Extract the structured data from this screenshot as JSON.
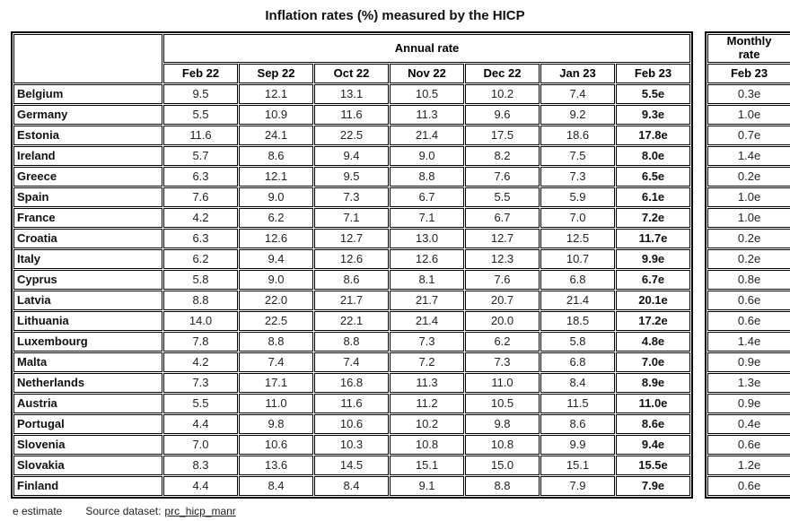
{
  "title": "Inflation rates (%) measured by the HICP",
  "annual": {
    "header": "Annual rate",
    "months": [
      "Feb 22",
      "Sep 22",
      "Oct 22",
      "Nov 22",
      "Dec 22",
      "Jan 23",
      "Feb 23"
    ]
  },
  "monthly": {
    "header": "Monthly rate",
    "month": "Feb 23"
  },
  "rows": [
    {
      "country": "Belgium",
      "annual": [
        "9.5",
        "12.1",
        "13.1",
        "10.5",
        "10.2",
        "7.4",
        "5.5e"
      ],
      "monthly": "0.3e"
    },
    {
      "country": "Germany",
      "annual": [
        "5.5",
        "10.9",
        "11.6",
        "11.3",
        "9.6",
        "9.2",
        "9.3e"
      ],
      "monthly": "1.0e"
    },
    {
      "country": "Estonia",
      "annual": [
        "11.6",
        "24.1",
        "22.5",
        "21.4",
        "17.5",
        "18.6",
        "17.8e"
      ],
      "monthly": "0.7e"
    },
    {
      "country": "Ireland",
      "annual": [
        "5.7",
        "8.6",
        "9.4",
        "9.0",
        "8.2",
        "7.5",
        "8.0e"
      ],
      "monthly": "1.4e"
    },
    {
      "country": "Greece",
      "annual": [
        "6.3",
        "12.1",
        "9.5",
        "8.8",
        "7.6",
        "7.3",
        "6.5e"
      ],
      "monthly": "0.2e"
    },
    {
      "country": "Spain",
      "annual": [
        "7.6",
        "9.0",
        "7.3",
        "6.7",
        "5.5",
        "5.9",
        "6.1e"
      ],
      "monthly": "1.0e"
    },
    {
      "country": "France",
      "annual": [
        "4.2",
        "6.2",
        "7.1",
        "7.1",
        "6.7",
        "7.0",
        "7.2e"
      ],
      "monthly": "1.0e"
    },
    {
      "country": "Croatia",
      "annual": [
        "6.3",
        "12.6",
        "12.7",
        "13.0",
        "12.7",
        "12.5",
        "11.7e"
      ],
      "monthly": "0.2e"
    },
    {
      "country": "Italy",
      "annual": [
        "6.2",
        "9.4",
        "12.6",
        "12.6",
        "12.3",
        "10.7",
        "9.9e"
      ],
      "monthly": "0.2e"
    },
    {
      "country": "Cyprus",
      "annual": [
        "5.8",
        "9.0",
        "8.6",
        "8.1",
        "7.6",
        "6.8",
        "6.7e"
      ],
      "monthly": "0.8e"
    },
    {
      "country": "Latvia",
      "annual": [
        "8.8",
        "22.0",
        "21.7",
        "21.7",
        "20.7",
        "21.4",
        "20.1e"
      ],
      "monthly": "0.6e"
    },
    {
      "country": "Lithuania",
      "annual": [
        "14.0",
        "22.5",
        "22.1",
        "21.4",
        "20.0",
        "18.5",
        "17.2e"
      ],
      "monthly": "0.6e"
    },
    {
      "country": "Luxembourg",
      "annual": [
        "7.8",
        "8.8",
        "8.8",
        "7.3",
        "6.2",
        "5.8",
        "4.8e"
      ],
      "monthly": "1.4e"
    },
    {
      "country": "Malta",
      "annual": [
        "4.2",
        "7.4",
        "7.4",
        "7.2",
        "7.3",
        "6.8",
        "7.0e"
      ],
      "monthly": "0.9e"
    },
    {
      "country": "Netherlands",
      "annual": [
        "7.3",
        "17.1",
        "16.8",
        "11.3",
        "11.0",
        "8.4",
        "8.9e"
      ],
      "monthly": "1.3e"
    },
    {
      "country": "Austria",
      "annual": [
        "5.5",
        "11.0",
        "11.6",
        "11.2",
        "10.5",
        "11.5",
        "11.0e"
      ],
      "monthly": "0.9e"
    },
    {
      "country": "Portugal",
      "annual": [
        "4.4",
        "9.8",
        "10.6",
        "10.2",
        "9.8",
        "8.6",
        "8.6e"
      ],
      "monthly": "0.4e"
    },
    {
      "country": "Slovenia",
      "annual": [
        "7.0",
        "10.6",
        "10.3",
        "10.8",
        "10.8",
        "9.9",
        "9.4e"
      ],
      "monthly": "0.6e"
    },
    {
      "country": "Slovakia",
      "annual": [
        "8.3",
        "13.6",
        "14.5",
        "15.1",
        "15.0",
        "15.1",
        "15.5e"
      ],
      "monthly": "1.2e"
    },
    {
      "country": "Finland",
      "annual": [
        "4.4",
        "8.4",
        "8.4",
        "9.1",
        "8.8",
        "7.9",
        "7.9e"
      ],
      "monthly": "0.6e"
    }
  ],
  "footnote": {
    "estimate": "e estimate",
    "source_label": "Source dataset:",
    "source_link": "prc_hicp_manr"
  }
}
